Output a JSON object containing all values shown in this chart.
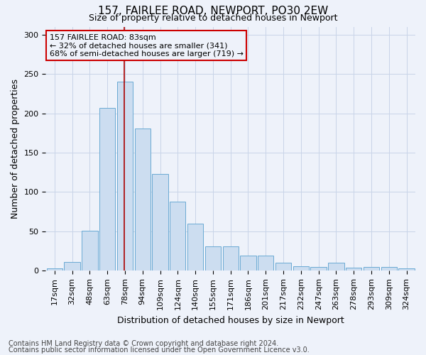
{
  "title1": "157, FAIRLEE ROAD, NEWPORT, PO30 2EW",
  "title2": "Size of property relative to detached houses in Newport",
  "xlabel": "Distribution of detached houses by size in Newport",
  "ylabel": "Number of detached properties",
  "footnote1": "Contains HM Land Registry data © Crown copyright and database right 2024.",
  "footnote2": "Contains public sector information licensed under the Open Government Licence v3.0.",
  "categories": [
    "17sqm",
    "32sqm",
    "48sqm",
    "63sqm",
    "78sqm",
    "94sqm",
    "109sqm",
    "124sqm",
    "140sqm",
    "155sqm",
    "171sqm",
    "186sqm",
    "201sqm",
    "217sqm",
    "232sqm",
    "247sqm",
    "263sqm",
    "278sqm",
    "293sqm",
    "309sqm",
    "324sqm"
  ],
  "values": [
    3,
    11,
    51,
    207,
    240,
    181,
    123,
    88,
    60,
    31,
    31,
    19,
    19,
    10,
    6,
    5,
    10,
    4,
    5,
    5,
    3
  ],
  "bar_color": "#ccddf0",
  "bar_edge_color": "#6aaad4",
  "highlight_bin_index": 4,
  "annotation_title": "157 FAIRLEE ROAD: 83sqm",
  "annotation_line1": "← 32% of detached houses are smaller (341)",
  "annotation_line2": "68% of semi-detached houses are larger (719) →",
  "vline_color": "#aa0000",
  "annotation_box_edge_color": "#cc0000",
  "ylim": [
    0,
    310
  ],
  "yticks": [
    0,
    50,
    100,
    150,
    200,
    250,
    300
  ],
  "grid_color": "#c8d4e8",
  "background_color": "#eef2fa",
  "title1_fontsize": 11,
  "title2_fontsize": 9,
  "axis_label_fontsize": 9,
  "tick_fontsize": 8,
  "annotation_fontsize": 8,
  "footnote_fontsize": 7
}
